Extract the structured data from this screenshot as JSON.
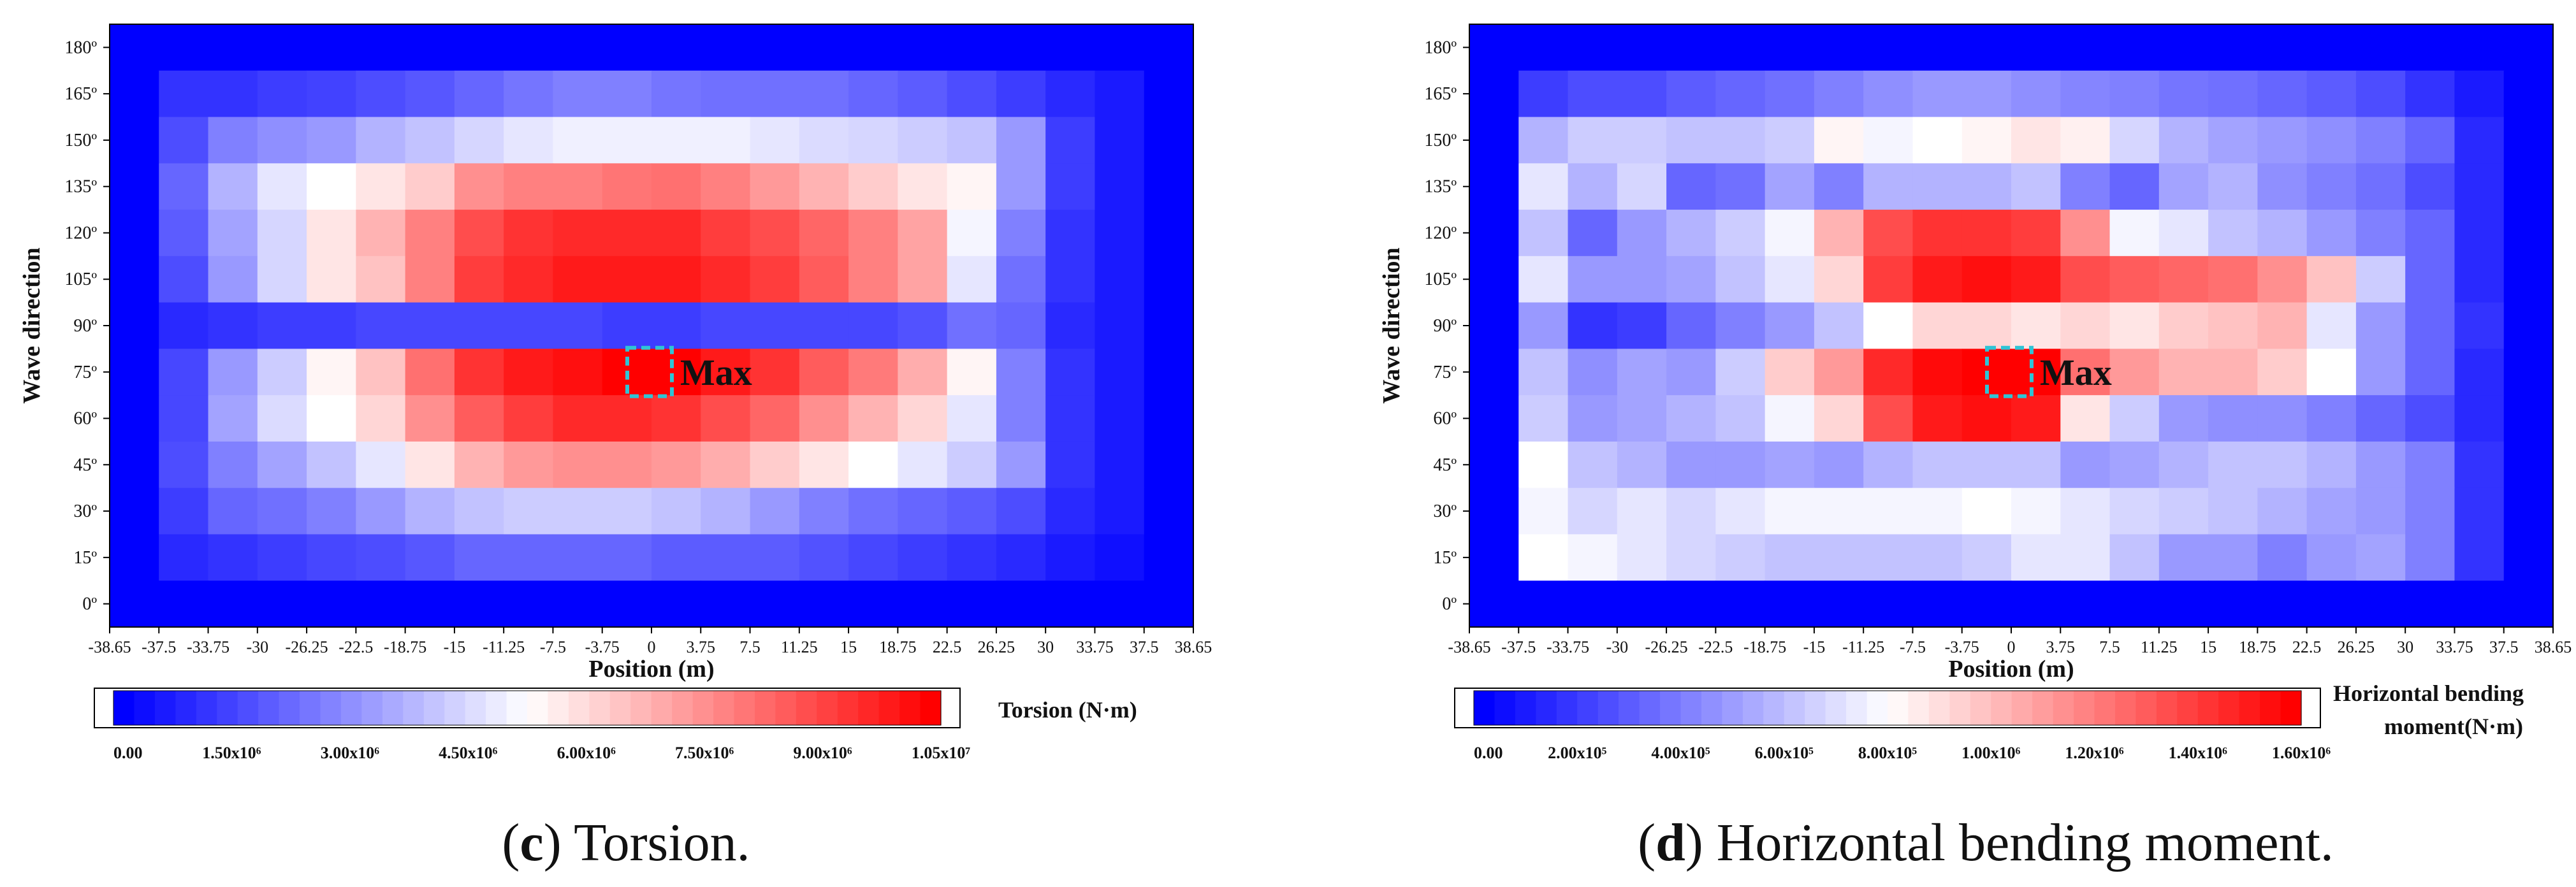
{
  "chart_data": [
    {
      "type": "heatmap",
      "title": "Torsion",
      "caption": {
        "open": "(",
        "letter": "c",
        "rest": ") Torsion."
      },
      "xlabel": "Position (m)",
      "ylabel": "Wave direction",
      "x": [
        "-38.65",
        "-37.5",
        "-33.75",
        "-30",
        "-26.25",
        "-22.5",
        "-18.75",
        "-15",
        "-11.25",
        "-7.5",
        "-3.75",
        "0",
        "3.75",
        "7.5",
        "11.25",
        "15",
        "18.75",
        "22.5",
        "26.25",
        "30",
        "33.75",
        "37.5",
        "38.65"
      ],
      "y": [
        "0º",
        "15º",
        "30º",
        "45º",
        "60º",
        "75º",
        "90º",
        "105º",
        "120º",
        "135º",
        "150º",
        "165º",
        "180º"
      ],
      "value_unit_max": 10500000,
      "values_normalized_rows_180_to_0": [
        [
          0,
          0,
          0,
          0,
          0,
          0,
          0,
          0,
          0,
          0,
          0,
          0,
          0,
          0,
          0,
          0,
          0,
          0,
          0,
          0,
          0,
          0
        ],
        [
          0,
          0.1,
          0.1,
          0.12,
          0.13,
          0.15,
          0.17,
          0.2,
          0.23,
          0.25,
          0.25,
          0.23,
          0.22,
          0.22,
          0.22,
          0.2,
          0.18,
          0.15,
          0.12,
          0.08,
          0.05,
          0
        ],
        [
          0,
          0.15,
          0.25,
          0.28,
          0.3,
          0.35,
          0.38,
          0.42,
          0.45,
          0.47,
          0.47,
          0.47,
          0.47,
          0.45,
          0.43,
          0.42,
          0.4,
          0.38,
          0.3,
          0.12,
          0.05,
          0
        ],
        [
          0,
          0.2,
          0.35,
          0.45,
          0.5,
          0.55,
          0.6,
          0.72,
          0.75,
          0.75,
          0.77,
          0.78,
          0.75,
          0.7,
          0.65,
          0.6,
          0.55,
          0.52,
          0.3,
          0.12,
          0.05,
          0
        ],
        [
          0,
          0.18,
          0.32,
          0.42,
          0.55,
          0.65,
          0.75,
          0.85,
          0.9,
          0.92,
          0.92,
          0.92,
          0.88,
          0.85,
          0.8,
          0.75,
          0.68,
          0.48,
          0.25,
          0.1,
          0.05,
          0
        ],
        [
          0,
          0.15,
          0.3,
          0.42,
          0.55,
          0.62,
          0.75,
          0.88,
          0.92,
          0.95,
          0.95,
          0.95,
          0.92,
          0.88,
          0.82,
          0.75,
          0.68,
          0.45,
          0.22,
          0.1,
          0.05,
          0
        ],
        [
          0,
          0.08,
          0.1,
          0.12,
          0.12,
          0.14,
          0.14,
          0.14,
          0.14,
          0.14,
          0.12,
          0.12,
          0.14,
          0.14,
          0.14,
          0.14,
          0.16,
          0.22,
          0.2,
          0.08,
          0.05,
          0
        ],
        [
          0,
          0.14,
          0.3,
          0.4,
          0.52,
          0.62,
          0.78,
          0.9,
          0.95,
          0.97,
          1.0,
          1.0,
          0.95,
          0.9,
          0.82,
          0.76,
          0.66,
          0.52,
          0.25,
          0.1,
          0.05,
          0
        ],
        [
          0,
          0.14,
          0.32,
          0.43,
          0.5,
          0.58,
          0.72,
          0.82,
          0.88,
          0.92,
          0.92,
          0.9,
          0.85,
          0.8,
          0.72,
          0.65,
          0.58,
          0.45,
          0.25,
          0.1,
          0.05,
          0
        ],
        [
          0,
          0.15,
          0.25,
          0.32,
          0.38,
          0.45,
          0.55,
          0.65,
          0.7,
          0.72,
          0.72,
          0.7,
          0.66,
          0.6,
          0.55,
          0.5,
          0.45,
          0.4,
          0.3,
          0.1,
          0.05,
          0
        ],
        [
          0,
          0.12,
          0.2,
          0.22,
          0.25,
          0.3,
          0.35,
          0.38,
          0.4,
          0.4,
          0.4,
          0.38,
          0.35,
          0.3,
          0.25,
          0.22,
          0.2,
          0.18,
          0.15,
          0.08,
          0.05,
          0
        ],
        [
          0,
          0.08,
          0.1,
          0.12,
          0.14,
          0.15,
          0.17,
          0.2,
          0.2,
          0.2,
          0.2,
          0.18,
          0.18,
          0.18,
          0.16,
          0.14,
          0.12,
          0.1,
          0.08,
          0.05,
          0.03,
          0
        ],
        [
          0,
          0,
          0,
          0,
          0,
          0,
          0,
          0,
          0,
          0,
          0,
          0,
          0,
          0,
          0,
          0,
          0,
          0,
          0,
          0,
          0,
          0
        ]
      ],
      "colorbar": {
        "label": "Torsion (N·m)",
        "ticks": [
          "0.00",
          "1.50x10⁶",
          "3.00x10⁶",
          "4.50x10⁶",
          "6.00x10⁶",
          "7.50x10⁶",
          "9.00x10⁶",
          "1.05x10⁷"
        ]
      },
      "max_marker": {
        "label": "Max",
        "x": "0",
        "y": "75º"
      }
    },
    {
      "type": "heatmap",
      "title": "Horizontal bending moment",
      "caption": {
        "open": "(",
        "letter": "d",
        "rest": ") Horizontal bending moment."
      },
      "xlabel": "Position (m)",
      "ylabel": "Wave direction",
      "x": [
        "-38.65",
        "-37.5",
        "-33.75",
        "-30",
        "-26.25",
        "-22.5",
        "-18.75",
        "-15",
        "-11.25",
        "-7.5",
        "-3.75",
        "0",
        "3.75",
        "7.5",
        "11.25",
        "15",
        "18.75",
        "22.5",
        "26.25",
        "30",
        "33.75",
        "37.5",
        "38.65"
      ],
      "y": [
        "0º",
        "15º",
        "30º",
        "45º",
        "60º",
        "75º",
        "90º",
        "105º",
        "120º",
        "135º",
        "150º",
        "165º",
        "180º"
      ],
      "value_unit_max": 1600000,
      "values_normalized_rows_180_to_0": [
        [
          0,
          0,
          0,
          0,
          0,
          0,
          0,
          0,
          0,
          0,
          0,
          0,
          0,
          0,
          0,
          0,
          0,
          0,
          0,
          0,
          0,
          0
        ],
        [
          0,
          0.12,
          0.15,
          0.15,
          0.18,
          0.2,
          0.22,
          0.25,
          0.28,
          0.3,
          0.3,
          0.28,
          0.26,
          0.25,
          0.23,
          0.22,
          0.2,
          0.18,
          0.15,
          0.1,
          0.05,
          0
        ],
        [
          0,
          0.35,
          0.4,
          0.4,
          0.38,
          0.38,
          0.4,
          0.52,
          0.48,
          0.5,
          0.52,
          0.55,
          0.53,
          0.42,
          0.35,
          0.32,
          0.3,
          0.28,
          0.25,
          0.2,
          0.08,
          0
        ],
        [
          0,
          0.45,
          0.35,
          0.42,
          0.2,
          0.22,
          0.32,
          0.25,
          0.35,
          0.35,
          0.35,
          0.38,
          0.25,
          0.2,
          0.32,
          0.35,
          0.28,
          0.25,
          0.22,
          0.15,
          0.08,
          0
        ],
        [
          0,
          0.38,
          0.2,
          0.3,
          0.35,
          0.4,
          0.48,
          0.65,
          0.85,
          0.9,
          0.9,
          0.88,
          0.72,
          0.48,
          0.45,
          0.38,
          0.35,
          0.3,
          0.25,
          0.2,
          0.08,
          0
        ],
        [
          0,
          0.45,
          0.3,
          0.3,
          0.32,
          0.38,
          0.45,
          0.58,
          0.88,
          0.95,
          0.97,
          0.95,
          0.85,
          0.82,
          0.8,
          0.78,
          0.72,
          0.62,
          0.4,
          0.2,
          0.08,
          0
        ],
        [
          0,
          0.3,
          0.1,
          0.12,
          0.2,
          0.25,
          0.3,
          0.38,
          0.5,
          0.58,
          0.58,
          0.55,
          0.58,
          0.55,
          0.6,
          0.62,
          0.65,
          0.45,
          0.3,
          0.2,
          0.1,
          0
        ],
        [
          0,
          0.38,
          0.28,
          0.32,
          0.3,
          0.4,
          0.6,
          0.7,
          0.92,
          0.98,
          1.0,
          1.0,
          0.78,
          0.7,
          0.65,
          0.65,
          0.6,
          0.5,
          0.3,
          0.2,
          0.08,
          0
        ],
        [
          0,
          0.4,
          0.3,
          0.32,
          0.35,
          0.38,
          0.48,
          0.58,
          0.85,
          0.95,
          0.97,
          0.95,
          0.55,
          0.4,
          0.3,
          0.28,
          0.28,
          0.25,
          0.2,
          0.15,
          0.08,
          0
        ],
        [
          0,
          0.5,
          0.38,
          0.35,
          0.3,
          0.3,
          0.32,
          0.3,
          0.35,
          0.38,
          0.38,
          0.38,
          0.3,
          0.32,
          0.35,
          0.38,
          0.38,
          0.35,
          0.3,
          0.25,
          0.1,
          0
        ],
        [
          0,
          0.48,
          0.42,
          0.45,
          0.42,
          0.45,
          0.48,
          0.48,
          0.48,
          0.48,
          0.5,
          0.48,
          0.45,
          0.42,
          0.4,
          0.38,
          0.35,
          0.32,
          0.3,
          0.25,
          0.1,
          0
        ],
        [
          0,
          0.5,
          0.48,
          0.45,
          0.42,
          0.4,
          0.38,
          0.38,
          0.38,
          0.38,
          0.4,
          0.45,
          0.45,
          0.38,
          0.3,
          0.3,
          0.25,
          0.3,
          0.32,
          0.25,
          0.1,
          0
        ],
        [
          0,
          0,
          0,
          0,
          0,
          0,
          0,
          0,
          0,
          0,
          0,
          0,
          0,
          0,
          0,
          0,
          0,
          0,
          0,
          0,
          0,
          0
        ]
      ],
      "colorbar": {
        "label_line1": "Horizontal bending",
        "label_line2": "moment(N·m)",
        "ticks": [
          "0.00",
          "2.00x10⁵",
          "4.00x10⁵",
          "6.00x10⁵",
          "8.00x10⁵",
          "1.00x10⁶",
          "1.20x10⁶",
          "1.40x10⁶",
          "1.60x10⁶"
        ]
      },
      "max_marker": {
        "label": "Max",
        "x": "0",
        "y": "75º"
      }
    }
  ]
}
